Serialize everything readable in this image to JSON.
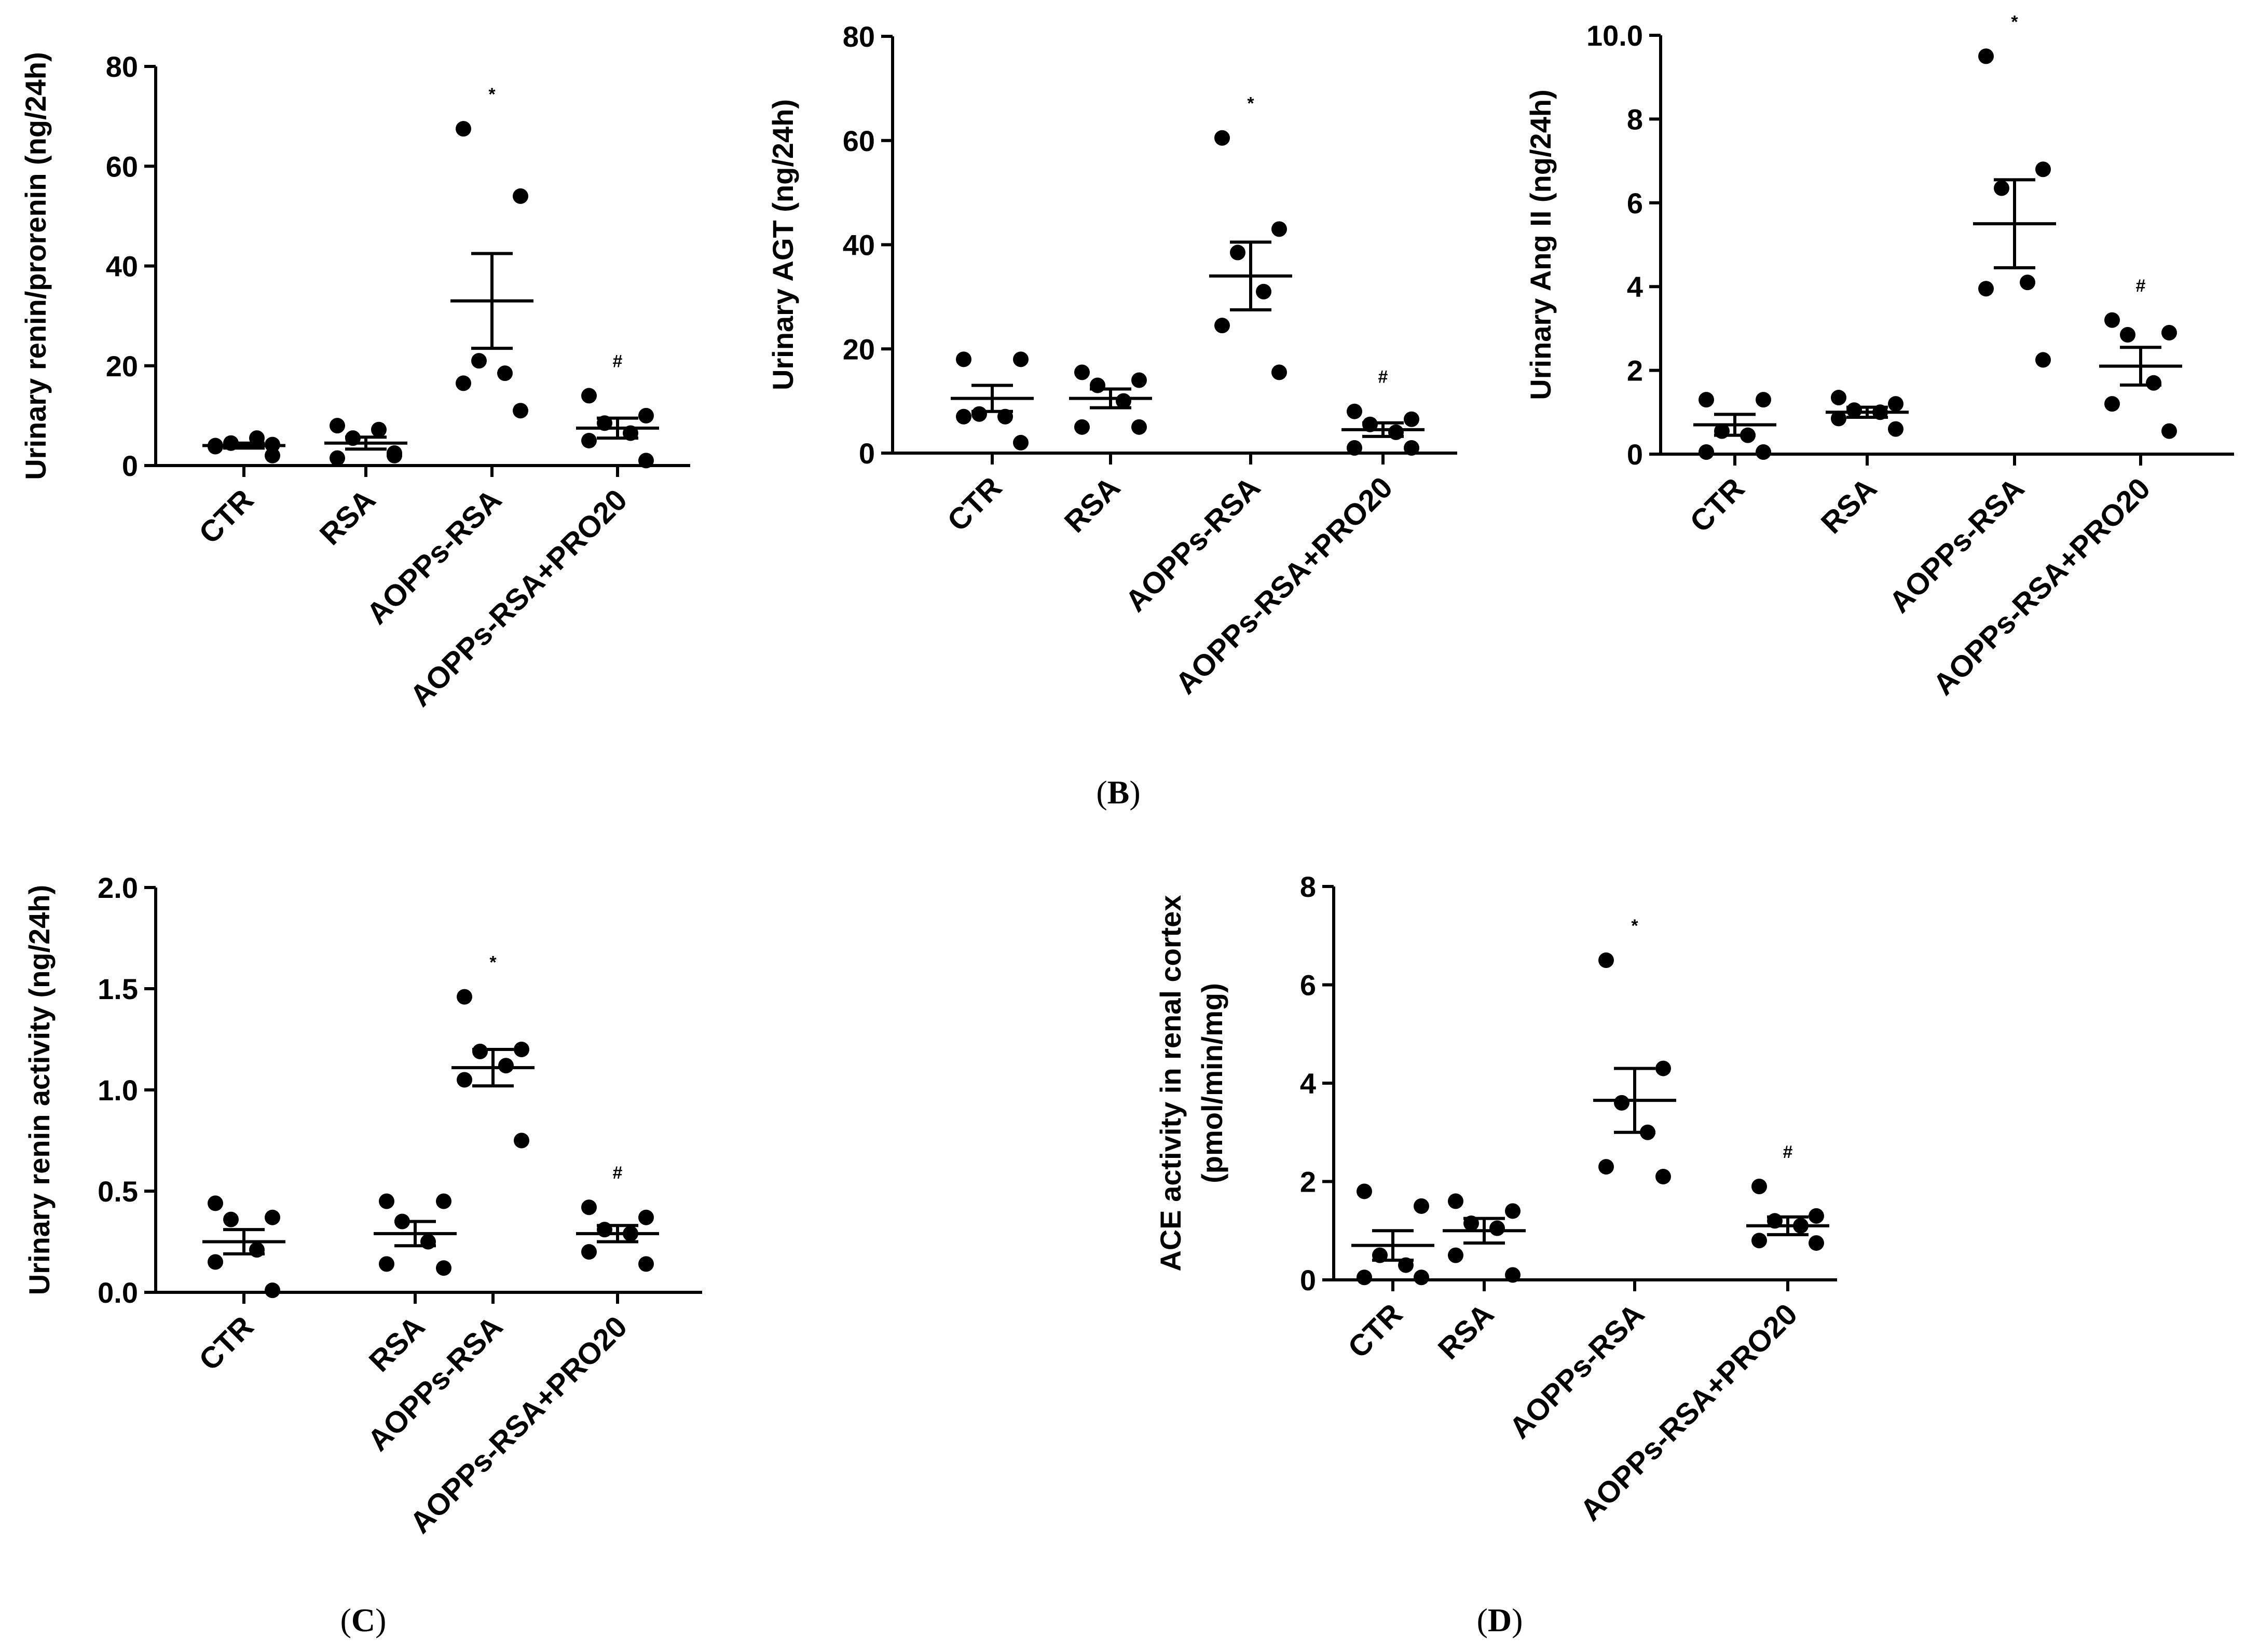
{
  "chart_data": [
    {
      "id": "renin-prorenin",
      "type": "scatter",
      "ylabel": "Urinary renin/prorenin (ng/24h)",
      "ylim": [
        0,
        80
      ],
      "yticks": [
        0,
        20,
        40,
        60,
        80
      ],
      "ytick_labels": [
        "0",
        "20",
        "40",
        "60",
        "80"
      ],
      "categories": [
        "CTR",
        "RSA",
        "AOPPs-RSA",
        "AOPPs-RSA+PRO20"
      ],
      "groups": [
        {
          "points": [
            4.0,
            4.2,
            4.5,
            5.5,
            3.8,
            2.0
          ],
          "mean": 4.0,
          "sem": 0.5,
          "mark": ""
        },
        {
          "points": [
            1.5,
            2.0,
            5.5,
            7.2,
            8.0,
            2.5
          ],
          "mean": 4.5,
          "sem": 1.2,
          "mark": ""
        },
        {
          "points": [
            67.5,
            54.0,
            21.0,
            18.5,
            16.5,
            11.0
          ],
          "mean": 33.0,
          "sem": 9.5,
          "mark": "*"
        },
        {
          "points": [
            14.0,
            10.0,
            8.5,
            6.5,
            5.0,
            1.0
          ],
          "mean": 7.5,
          "sem": 2.0,
          "mark": "#"
        }
      ]
    },
    {
      "id": "agt",
      "type": "scatter",
      "ylabel": "Urinary AGT (ng/24h)",
      "ylim": [
        0,
        80
      ],
      "yticks": [
        0,
        20,
        40,
        60,
        80
      ],
      "ytick_labels": [
        "0",
        "20",
        "40",
        "60",
        "80"
      ],
      "categories": [
        "CTR",
        "RSA",
        "AOPPs-RSA",
        "AOPPs-RSA+PRO20"
      ],
      "groups": [
        {
          "points": [
            18.0,
            18.0,
            7.5,
            7.0,
            7.0,
            2.0
          ],
          "mean": 10.5,
          "sem": 2.5,
          "mark": ""
        },
        {
          "points": [
            15.5,
            14.0,
            13.0,
            10.0,
            5.0,
            5.0
          ],
          "mean": 10.5,
          "sem": 1.8,
          "mark": ""
        },
        {
          "points": [
            60.5,
            43.0,
            38.5,
            31.0,
            24.5,
            15.5
          ],
          "mean": 34.0,
          "sem": 6.5,
          "mark": "*"
        },
        {
          "points": [
            8.0,
            6.5,
            5.5,
            4.0,
            1.0,
            1.0
          ],
          "mean": 4.5,
          "sem": 1.3,
          "mark": "#"
        }
      ]
    },
    {
      "id": "ang-ii",
      "type": "scatter",
      "ylabel": "Urinary Ang II (ng/24h)",
      "ylim": [
        0,
        10
      ],
      "yticks": [
        0,
        2,
        4,
        6,
        8,
        10
      ],
      "ytick_labels": [
        "0",
        "2",
        "4",
        "6",
        "8",
        "10.0"
      ],
      "categories": [
        "CTR",
        "RSA",
        "AOPPs-RSA",
        "AOPPs-RSA+PRO20"
      ],
      "groups": [
        {
          "points": [
            1.3,
            1.3,
            0.55,
            0.45,
            0.05,
            0.05
          ],
          "mean": 0.7,
          "sem": 0.25,
          "mark": ""
        },
        {
          "points": [
            1.35,
            1.2,
            1.05,
            1.0,
            0.85,
            0.6
          ],
          "mean": 1.0,
          "sem": 0.12,
          "mark": ""
        },
        {
          "points": [
            9.5,
            6.8,
            6.35,
            4.1,
            3.95,
            2.25
          ],
          "mean": 5.5,
          "sem": 1.05,
          "mark": "*"
        },
        {
          "points": [
            3.2,
            2.9,
            2.85,
            1.7,
            1.2,
            0.55
          ],
          "mean": 2.1,
          "sem": 0.45,
          "mark": "#"
        }
      ]
    },
    {
      "id": "renin-activity",
      "type": "scatter",
      "ylabel": "Urinary renin activity  (ng/24h)",
      "ylim": [
        0,
        2
      ],
      "yticks": [
        0,
        0.5,
        1,
        1.5,
        2
      ],
      "ytick_labels": [
        "0.0",
        "0.5",
        "1.0",
        "1.5",
        "2.0"
      ],
      "categories": [
        "CTR",
        "RSA",
        "AOPPs-RSA",
        "AOPPs-RSA+PRO20"
      ],
      "groups": [
        {
          "points": [
            0.44,
            0.37,
            0.36,
            0.21,
            0.15,
            0.01
          ],
          "mean": 0.25,
          "sem": 0.06,
          "mark": ""
        },
        {
          "points": [
            0.45,
            0.45,
            0.35,
            0.25,
            0.14,
            0.12
          ],
          "mean": 0.29,
          "sem": 0.06,
          "mark": ""
        },
        {
          "points": [
            1.46,
            1.2,
            1.19,
            1.12,
            1.05,
            0.75
          ],
          "mean": 1.11,
          "sem": 0.09,
          "mark": "*"
        },
        {
          "points": [
            0.42,
            0.37,
            0.31,
            0.29,
            0.2,
            0.14
          ],
          "mean": 0.29,
          "sem": 0.04,
          "mark": "#"
        }
      ]
    },
    {
      "id": "ace-activity",
      "type": "scatter",
      "ylabel": "ACE activity in renal cortex",
      "ylabel2": "(pmol/min/mg)",
      "ylim": [
        0,
        8
      ],
      "yticks": [
        0,
        2,
        4,
        6,
        8
      ],
      "ytick_labels": [
        "0",
        "2",
        "4",
        "6",
        "8"
      ],
      "categories": [
        "CTR",
        "RSA",
        "AOPPs-RSA",
        "AOPPs-RSA+PRO20"
      ],
      "groups": [
        {
          "points": [
            1.8,
            1.5,
            0.5,
            0.3,
            0.05,
            0.05
          ],
          "mean": 0.7,
          "sem": 0.3,
          "mark": ""
        },
        {
          "points": [
            1.6,
            1.4,
            1.15,
            1.05,
            0.5,
            0.1
          ],
          "mean": 1.0,
          "sem": 0.25,
          "mark": ""
        },
        {
          "points": [
            6.5,
            4.3,
            3.6,
            3.0,
            2.3,
            2.1
          ],
          "mean": 3.65,
          "sem": 0.65,
          "mark": "*"
        },
        {
          "points": [
            1.9,
            1.3,
            1.2,
            1.1,
            0.8,
            0.75
          ],
          "mean": 1.1,
          "sem": 0.18,
          "mark": "#"
        }
      ]
    }
  ],
  "captions": {
    "b": {
      "open": "(",
      "letter": "B",
      "close": ")"
    },
    "c": {
      "open": "(",
      "letter": "C",
      "close": ")"
    },
    "d": {
      "open": "(",
      "letter": "D",
      "close": ")"
    }
  }
}
